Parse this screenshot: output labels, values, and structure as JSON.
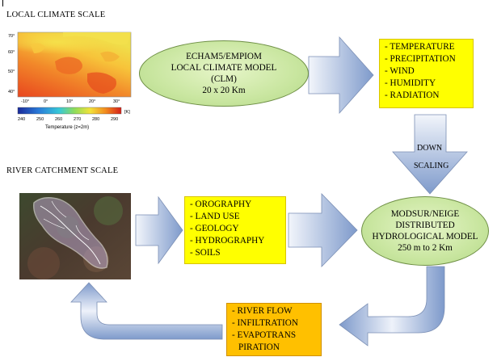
{
  "local_scale": {
    "label": "LOCAL CLIMATE SCALE",
    "map": {
      "y_ticks": [
        "70°",
        "60°",
        "50°",
        "40°"
      ],
      "x_ticks": [
        "-10°",
        "0°",
        "10°",
        "20°",
        "30°"
      ],
      "colorbar_ticks": [
        "240",
        "250",
        "260",
        "270",
        "280",
        "290"
      ],
      "colorbar_unit": "[K]",
      "caption": "Temperature (z=2m)"
    }
  },
  "climate_model": {
    "lines": [
      "ECHAM5/EMPIOM",
      "LOCAL CLIMATE MODEL",
      "(CLM)",
      "20 x 20 Km"
    ]
  },
  "climate_outputs": {
    "items": [
      "- TEMPERATURE",
      "- PRECIPITATION",
      "- WIND",
      "- HUMIDITY",
      "- RADIATION"
    ]
  },
  "downscaling": {
    "line1": "DOWN",
    "line2": "SCALING"
  },
  "river_scale": {
    "label": "RIVER CATCHMENT SCALE"
  },
  "catchment_inputs": {
    "items": [
      "- OROGRAPHY",
      "- LAND USE",
      "- GEOLOGY",
      "- HYDROGRAPHY",
      "- SOILS"
    ]
  },
  "hydro_model": {
    "lines": [
      "MODSUR/NEIGE",
      "DISTRIBUTED",
      "HYDROLOGICAL MODEL",
      "250 m to 2 Km"
    ]
  },
  "hydro_outputs": {
    "items": [
      "- RIVER FLOW",
      "- INFILTRATION",
      "- EVAPOTRANS",
      "PIRATION"
    ]
  },
  "colors": {
    "yellow_box": "#ffff00",
    "orange_box": "#ffc000",
    "ellipse_green": "#c9e6a0",
    "arrow_light": "#e8eef8",
    "arrow_dark": "#6f8fc4"
  }
}
